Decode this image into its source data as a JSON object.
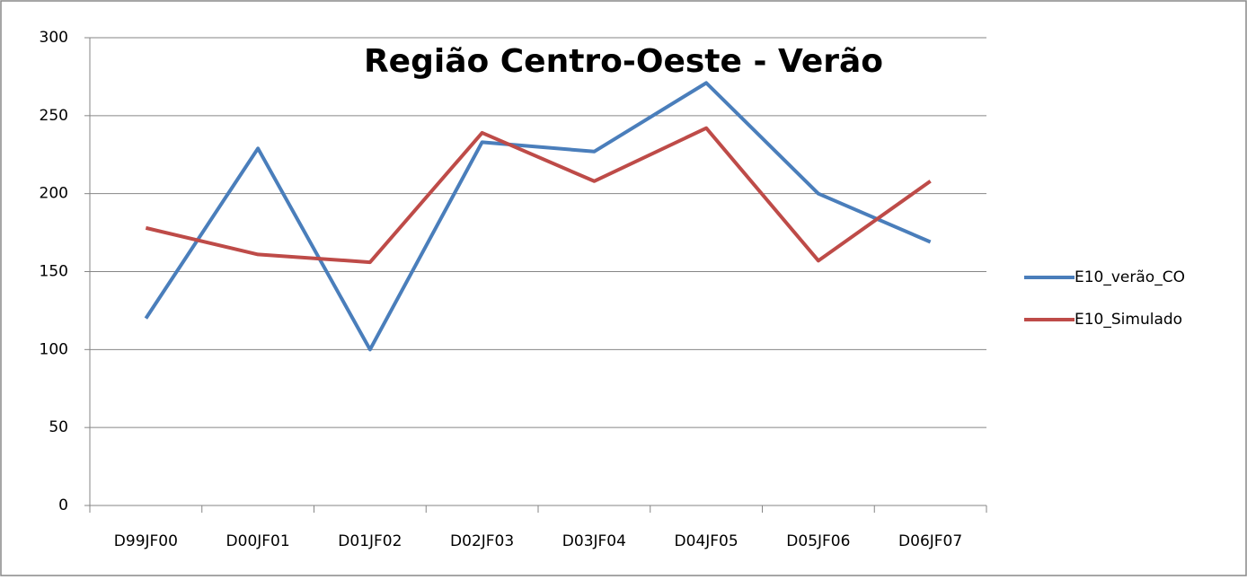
{
  "chart_data": {
    "type": "line",
    "title": "Região Centro-Oeste - Verão",
    "categories": [
      "D99JF00",
      "D00JF01",
      "D01JF02",
      "D02JF03",
      "D03JF04",
      "D04JF05",
      "D05JF06",
      "D06JF07"
    ],
    "series": [
      {
        "name": "E10_verão_CO",
        "color": "#4a7ebb",
        "values": [
          120,
          229,
          100,
          233,
          227,
          271,
          200,
          169
        ]
      },
      {
        "name": "E10_Simulado",
        "color": "#be4b48",
        "values": [
          178,
          161,
          156,
          239,
          208,
          242,
          157,
          208
        ]
      }
    ],
    "ylim": [
      0,
      300
    ],
    "yticks": [
      0,
      50,
      100,
      150,
      200,
      250,
      300
    ],
    "grid": true,
    "legend": "right"
  }
}
